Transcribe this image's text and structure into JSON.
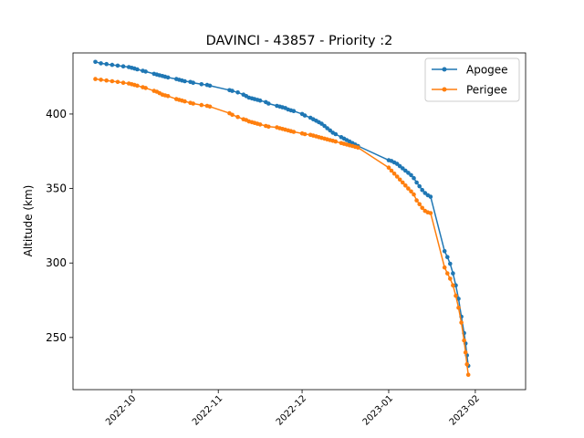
{
  "chart_data": {
    "type": "line",
    "title": "DAVINCI - 43857 - Priority :2",
    "xlabel": "",
    "ylabel": "Altitude (km)",
    "x_ticks": [
      "2022-10",
      "2022-11",
      "2022-12",
      "2023-01",
      "2023-02"
    ],
    "x_tick_days": [
      0,
      31,
      61,
      92,
      123
    ],
    "xlim_days": [
      -21,
      141
    ],
    "y_ticks": [
      "250",
      "300",
      "350",
      "400"
    ],
    "y_tick_values": [
      250,
      300,
      350,
      400
    ],
    "ylim": [
      215,
      441
    ],
    "legend_position": "top-right",
    "x_units": "days since 2022-10-01",
    "series": [
      {
        "name": "Apogee",
        "color": "#1f77b4",
        "x": [
          -13,
          -11,
          -9,
          -7,
          -5,
          -3,
          -1,
          0,
          1,
          2,
          4,
          5,
          8,
          9,
          10,
          11,
          12,
          13,
          16,
          17,
          18,
          19,
          21,
          22,
          25,
          27,
          28,
          35,
          36,
          38,
          40,
          41,
          42,
          43,
          44,
          45,
          46,
          48,
          49,
          52,
          53,
          54,
          55,
          56,
          57,
          58,
          61,
          62,
          64,
          65,
          66,
          67,
          68,
          69,
          70,
          71,
          72,
          73,
          75,
          76,
          77,
          78,
          79,
          80,
          81,
          92,
          93,
          94,
          95,
          96,
          97,
          98,
          99,
          100,
          101,
          102,
          103,
          104,
          105,
          106,
          107,
          112,
          113,
          114,
          115,
          116,
          117,
          118,
          119,
          119.5,
          120,
          120.5
        ],
        "values": [
          435,
          434,
          433.5,
          433,
          432.5,
          432,
          431.5,
          431,
          430.5,
          430,
          429,
          428.5,
          427,
          426.5,
          426,
          425.5,
          425,
          424.5,
          423.5,
          423,
          422.5,
          422,
          421.5,
          421,
          420,
          419.5,
          419,
          416,
          415.5,
          414.5,
          413,
          412,
          411,
          410.5,
          410,
          409.5,
          409,
          408,
          407,
          405.5,
          405,
          404.5,
          404,
          403,
          402.5,
          402,
          400,
          399,
          397.5,
          396.5,
          395.5,
          394.5,
          393.5,
          392,
          390.5,
          389,
          387.5,
          386.5,
          384.5,
          383.5,
          382.5,
          381.5,
          380.5,
          379.5,
          378.5,
          369,
          368.5,
          367.5,
          366.5,
          365,
          363.5,
          362,
          360.5,
          359,
          357,
          354,
          351.5,
          349,
          347,
          345.5,
          344.5,
          308,
          304,
          299.5,
          293,
          285,
          276,
          264,
          253,
          246,
          238,
          231
        ]
      },
      {
        "name": "Perigee",
        "color": "#ff7f0e",
        "x": [
          -13,
          -11,
          -9,
          -7,
          -5,
          -3,
          -1,
          0,
          1,
          2,
          4,
          5,
          8,
          9,
          10,
          11,
          12,
          13,
          16,
          17,
          18,
          19,
          21,
          22,
          25,
          27,
          28,
          35,
          36,
          38,
          40,
          41,
          42,
          43,
          44,
          45,
          46,
          48,
          49,
          52,
          53,
          54,
          55,
          56,
          57,
          58,
          61,
          62,
          64,
          65,
          66,
          67,
          68,
          69,
          70,
          71,
          72,
          73,
          75,
          76,
          77,
          78,
          79,
          80,
          81,
          92,
          93,
          94,
          95,
          96,
          97,
          98,
          99,
          100,
          101,
          102,
          103,
          104,
          105,
          106,
          107,
          112,
          113,
          114,
          115,
          116,
          117,
          118,
          119,
          119.5,
          120,
          120.5
        ],
        "values": [
          423.5,
          423,
          422.5,
          422,
          421.5,
          421,
          420.5,
          420,
          419.5,
          419,
          418,
          417.5,
          415.5,
          415,
          414,
          413,
          412.5,
          412,
          410,
          409.5,
          409,
          408.5,
          407.5,
          407,
          406,
          405.5,
          405,
          400.5,
          399.5,
          398,
          396.5,
          396,
          395,
          394.5,
          394,
          393.5,
          393,
          392,
          391.5,
          391,
          390.5,
          390,
          389.5,
          389,
          388.5,
          388,
          387,
          386.5,
          386,
          385.5,
          385,
          384.5,
          384,
          383.5,
          383,
          382.5,
          382,
          381.5,
          380.5,
          380,
          379.5,
          379,
          378.5,
          378,
          377.5,
          364,
          362,
          360,
          358,
          356,
          354,
          352,
          350,
          348,
          346,
          342,
          339.5,
          337,
          335,
          334,
          333.5,
          297,
          293,
          289.5,
          285,
          278,
          270,
          260,
          248,
          240,
          232,
          225
        ]
      }
    ]
  }
}
